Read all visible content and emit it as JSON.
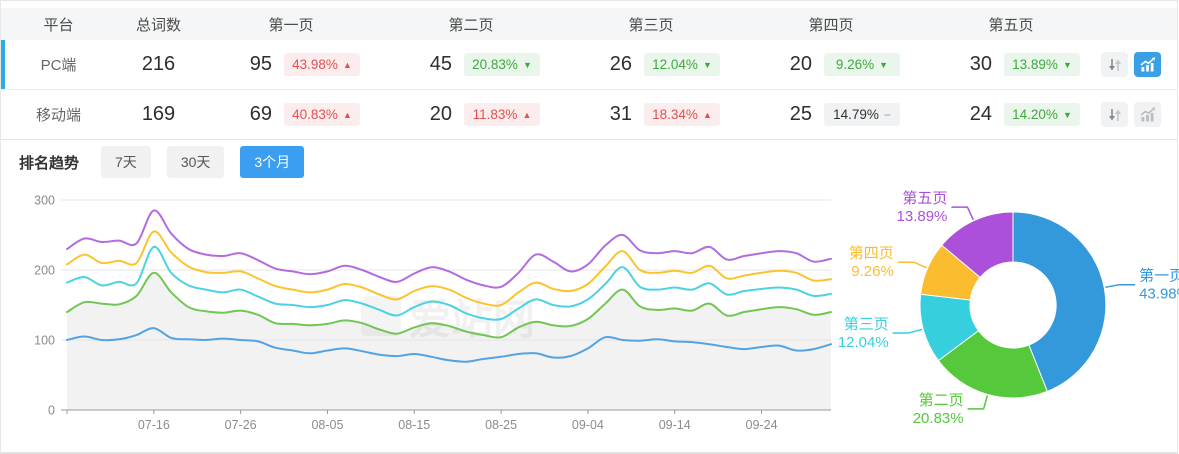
{
  "table": {
    "columns": [
      "平台",
      "总词数",
      "第一页",
      "第二页",
      "第三页",
      "第四页",
      "第五页"
    ],
    "rows": [
      {
        "platform": "PC端",
        "total": "216",
        "selected": true,
        "pages": [
          {
            "count": "95",
            "pct": "43.98%",
            "dir": "up"
          },
          {
            "count": "45",
            "pct": "20.83%",
            "dir": "down"
          },
          {
            "count": "26",
            "pct": "12.04%",
            "dir": "down"
          },
          {
            "count": "20",
            "pct": "9.26%",
            "dir": "down"
          },
          {
            "count": "30",
            "pct": "13.89%",
            "dir": "down"
          }
        ]
      },
      {
        "platform": "移动端",
        "total": "169",
        "selected": false,
        "pages": [
          {
            "count": "69",
            "pct": "40.83%",
            "dir": "up"
          },
          {
            "count": "20",
            "pct": "11.83%",
            "dir": "up"
          },
          {
            "count": "31",
            "pct": "18.34%",
            "dir": "up"
          },
          {
            "count": "25",
            "pct": "14.79%",
            "dir": "flat"
          },
          {
            "count": "24",
            "pct": "14.20%",
            "dir": "down"
          }
        ]
      }
    ],
    "icons": [
      "sort-icon",
      "trend-chart-icon"
    ]
  },
  "trend": {
    "label": "排名趋势",
    "tabs": [
      {
        "label": "7天",
        "active": false
      },
      {
        "label": "30天",
        "active": false
      },
      {
        "label": "3个月",
        "active": true
      }
    ]
  },
  "watermark": "爱站网",
  "colors": {
    "row_accent": "#29ABE3",
    "tab_active": "#3A9FF0",
    "icon_active": "#3B9FE6",
    "badge_up_text": "#E35050",
    "badge_down_text": "#3FA83F",
    "axis_text": "#8C8C8C",
    "grid_line": "#E4E4E6",
    "area_fill": "#F2F2F3"
  },
  "chart_data": [
    {
      "type": "line",
      "title": "排名趋势 - 3个月",
      "xlabel": "",
      "ylabel": "",
      "ylim": [
        0,
        300
      ],
      "yticks": [
        0,
        100,
        200,
        300
      ],
      "grid": true,
      "legend": "none",
      "note": "series values are cumulative keyword counts: page1, +page2, +page3, +page4, +page5(=total)",
      "x": [
        "07-06",
        "07-08",
        "07-10",
        "07-12",
        "07-14",
        "07-16",
        "07-18",
        "07-20",
        "07-22",
        "07-24",
        "07-26",
        "07-28",
        "07-30",
        "08-01",
        "08-03",
        "08-05",
        "08-07",
        "08-09",
        "08-11",
        "08-13",
        "08-15",
        "08-17",
        "08-19",
        "08-21",
        "08-23",
        "08-25",
        "08-27",
        "08-29",
        "08-31",
        "09-02",
        "09-04",
        "09-06",
        "09-08",
        "09-10",
        "09-12",
        "09-14",
        "09-16",
        "09-18",
        "09-20",
        "09-22",
        "09-24",
        "09-26",
        "09-28",
        "09-30",
        "10-02"
      ],
      "x_tick_labels": [
        "07-16",
        "07-26",
        "08-05",
        "08-15",
        "08-25",
        "09-04",
        "09-14",
        "09-24"
      ],
      "series": [
        {
          "name": "第一页",
          "color": "#52A3E4",
          "area": false,
          "values": [
            100,
            105,
            100,
            101,
            107,
            117,
            103,
            101,
            100,
            102,
            100,
            98,
            89,
            85,
            81,
            85,
            88,
            84,
            79,
            77,
            80,
            76,
            71,
            69,
            73,
            76,
            80,
            81,
            75,
            77,
            88,
            104,
            100,
            99,
            101,
            98,
            97,
            94,
            90,
            87,
            90,
            92,
            85,
            87,
            94
          ]
        },
        {
          "name": "第二页",
          "color": "#72C655",
          "area": true,
          "values": [
            140,
            154,
            152,
            151,
            163,
            196,
            168,
            147,
            141,
            139,
            142,
            136,
            124,
            123,
            121,
            123,
            128,
            124,
            115,
            109,
            118,
            124,
            120,
            112,
            107,
            104,
            118,
            126,
            121,
            120,
            130,
            152,
            172,
            148,
            143,
            145,
            142,
            152,
            135,
            140,
            144,
            147,
            144,
            136,
            140
          ]
        },
        {
          "name": "第三页",
          "color": "#4CD2E2",
          "area": false,
          "values": [
            182,
            190,
            178,
            183,
            181,
            233,
            196,
            178,
            172,
            168,
            172,
            162,
            152,
            150,
            147,
            150,
            157,
            152,
            143,
            135,
            147,
            155,
            150,
            138,
            131,
            130,
            145,
            158,
            150,
            148,
            158,
            180,
            204,
            176,
            172,
            175,
            172,
            181,
            165,
            170,
            173,
            175,
            172,
            163,
            166
          ]
        },
        {
          "name": "第四页",
          "color": "#FAC42F",
          "area": false,
          "values": [
            208,
            222,
            210,
            213,
            210,
            255,
            225,
            205,
            197,
            196,
            198,
            188,
            177,
            172,
            168,
            172,
            180,
            175,
            165,
            158,
            170,
            177,
            172,
            160,
            152,
            150,
            168,
            182,
            173,
            170,
            180,
            205,
            227,
            200,
            196,
            199,
            196,
            206,
            188,
            192,
            196,
            199,
            196,
            185,
            187
          ]
        },
        {
          "name": "第五页",
          "color": "#B36BE0",
          "area": false,
          "values": [
            230,
            245,
            240,
            242,
            238,
            285,
            252,
            230,
            222,
            220,
            224,
            214,
            202,
            198,
            194,
            198,
            206,
            200,
            190,
            183,
            195,
            204,
            198,
            186,
            178,
            176,
            196,
            222,
            212,
            198,
            208,
            235,
            250,
            228,
            224,
            227,
            224,
            233,
            215,
            220,
            224,
            227,
            224,
            212,
            216
          ]
        }
      ]
    },
    {
      "type": "pie",
      "donut": true,
      "title": "",
      "legend": "none",
      "slices": [
        {
          "label": "第一页",
          "pct": "43.98%",
          "value": 43.98,
          "color": "#3499DB"
        },
        {
          "label": "第二页",
          "pct": "20.83%",
          "value": 20.83,
          "color": "#55C83B"
        },
        {
          "label": "第三页",
          "pct": "12.04%",
          "value": 12.04,
          "color": "#36CFDE"
        },
        {
          "label": "第四页",
          "pct": "9.26%",
          "value": 9.26,
          "color": "#FBBC30"
        },
        {
          "label": "第五页",
          "pct": "13.89%",
          "value": 13.89,
          "color": "#AC50DB"
        }
      ]
    }
  ]
}
